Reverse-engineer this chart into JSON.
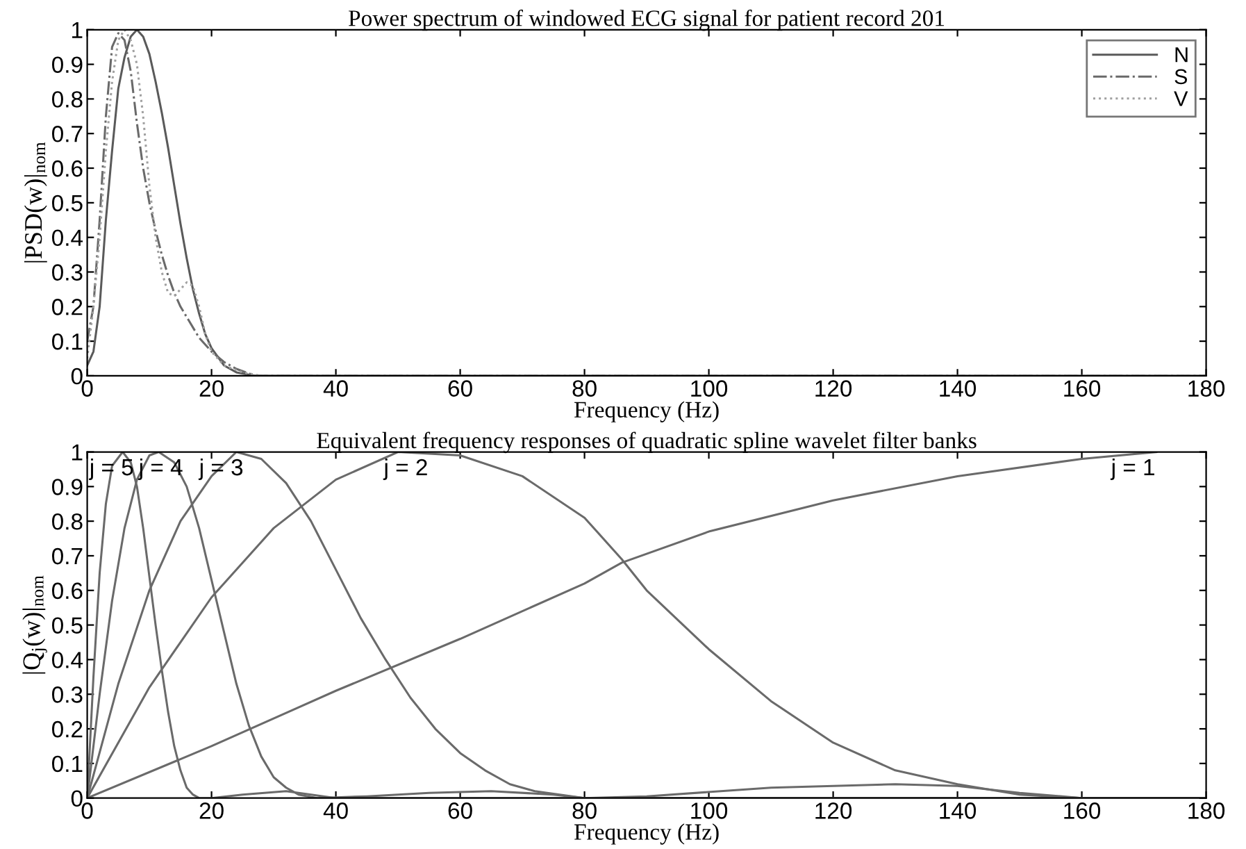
{
  "chart_data": [
    {
      "type": "line",
      "title": "Power spectrum of windowed ECG signal for patient record 201",
      "xlabel": "Frequency (Hz)",
      "ylabel": "|PSD(w)|$_{nom}$",
      "xlim": [
        0,
        180
      ],
      "ylim": [
        0,
        1
      ],
      "xticks": [
        0,
        20,
        40,
        60,
        80,
        100,
        120,
        140,
        160,
        180
      ],
      "yticks": [
        0,
        0.1,
        0.2,
        0.3,
        0.4,
        0.5,
        0.6,
        0.7,
        0.8,
        0.9,
        1
      ],
      "grid": false,
      "legend": "top right",
      "series": [
        {
          "name": "N",
          "color": "#5a5a5a",
          "line_style": "solid",
          "x": [
            0,
            1,
            2,
            3,
            4,
            5,
            6,
            7,
            8,
            9,
            10,
            11,
            12,
            13,
            14,
            15,
            16,
            17,
            18,
            19,
            20,
            22,
            24,
            27,
            180
          ],
          "values": [
            0.03,
            0.07,
            0.2,
            0.45,
            0.65,
            0.83,
            0.92,
            0.98,
            1.0,
            0.98,
            0.93,
            0.85,
            0.76,
            0.66,
            0.55,
            0.44,
            0.34,
            0.25,
            0.18,
            0.12,
            0.08,
            0.03,
            0.01,
            0,
            0
          ]
        },
        {
          "name": "S",
          "color": "#6a6a6a",
          "line_style": "dashdot",
          "x": [
            0,
            1,
            2,
            3,
            4,
            5,
            6,
            7,
            8,
            9,
            10,
            11,
            12,
            13,
            14,
            15,
            16,
            18,
            20,
            22,
            24,
            27,
            180
          ],
          "values": [
            0.1,
            0.2,
            0.45,
            0.75,
            0.95,
            0.99,
            0.97,
            0.88,
            0.73,
            0.6,
            0.5,
            0.42,
            0.35,
            0.29,
            0.24,
            0.2,
            0.17,
            0.11,
            0.07,
            0.04,
            0.02,
            0,
            0
          ]
        },
        {
          "name": "V",
          "color": "#a0a0a0",
          "line_style": "dotted",
          "x": [
            0,
            1,
            2,
            3,
            4,
            5,
            6,
            7,
            8,
            9,
            10,
            11,
            12,
            13,
            14,
            15,
            16,
            17,
            18,
            19,
            20,
            22,
            25,
            28,
            180
          ],
          "values": [
            0.05,
            0.2,
            0.4,
            0.65,
            0.85,
            0.97,
            1.0,
            0.97,
            0.9,
            0.75,
            0.55,
            0.4,
            0.3,
            0.24,
            0.23,
            0.25,
            0.27,
            0.26,
            0.2,
            0.12,
            0.07,
            0.03,
            0.01,
            0,
            0
          ]
        }
      ]
    },
    {
      "type": "line",
      "title": "Equivalent frequency responses of quadratic spline wavelet filter banks",
      "xlabel": "Frequency (Hz)",
      "ylabel": "|Q$_{j}$(w)|$_{nom}$",
      "xlim": [
        0,
        180
      ],
      "ylim": [
        0,
        1
      ],
      "xticks": [
        0,
        20,
        40,
        60,
        80,
        100,
        120,
        140,
        160,
        180
      ],
      "yticks": [
        0,
        0.1,
        0.2,
        0.3,
        0.4,
        0.5,
        0.6,
        0.7,
        0.8,
        0.9,
        1
      ],
      "grid": false,
      "annotations": [
        "j = 5",
        "j = 4",
        "j = 3",
        "j = 2",
        "j = 1"
      ],
      "series": [
        {
          "color": "#6a6a6a",
          "line_style": "solid",
          "x": [
            0,
            1,
            2,
            3,
            4,
            5.7,
            7,
            8,
            9,
            10,
            11,
            12,
            13,
            14,
            15,
            16,
            17,
            18,
            20,
            25,
            32,
            38,
            40,
            180
          ],
          "values": [
            0,
            0.35,
            0.65,
            0.85,
            0.96,
            1,
            0.97,
            0.9,
            0.78,
            0.64,
            0.5,
            0.37,
            0.25,
            0.15,
            0.08,
            0.03,
            0.01,
            0,
            0,
            0.01,
            0.02,
            0.005,
            0,
            0
          ]
        },
        {
          "color": "#6a6a6a",
          "line_style": "solid",
          "x": [
            0,
            2,
            4,
            6,
            8,
            10,
            11.5,
            14,
            16,
            18,
            20,
            22,
            24,
            26,
            28,
            30,
            32,
            34,
            37,
            45,
            55,
            65,
            75,
            80,
            180
          ],
          "values": [
            0,
            0.3,
            0.57,
            0.78,
            0.92,
            0.99,
            1,
            0.97,
            0.9,
            0.78,
            0.63,
            0.48,
            0.33,
            0.21,
            0.12,
            0.06,
            0.03,
            0.01,
            0,
            0.005,
            0.015,
            0.02,
            0.01,
            0,
            0
          ]
        },
        {
          "color": "#6a6a6a",
          "line_style": "solid",
          "x": [
            0,
            5,
            10,
            15,
            20,
            24,
            28,
            32,
            36,
            40,
            44,
            48,
            52,
            56,
            60,
            64,
            68,
            72,
            76,
            80,
            90,
            110,
            130,
            140,
            150,
            160,
            180
          ],
          "values": [
            0,
            0.33,
            0.6,
            0.8,
            0.93,
            1,
            0.98,
            0.91,
            0.8,
            0.66,
            0.52,
            0.4,
            0.29,
            0.2,
            0.13,
            0.08,
            0.04,
            0.02,
            0.01,
            0,
            0.005,
            0.03,
            0.04,
            0.035,
            0.015,
            0,
            0
          ]
        },
        {
          "color": "#6a6a6a",
          "line_style": "solid",
          "x": [
            0,
            10,
            20,
            30,
            40,
            50,
            60,
            70,
            80,
            86,
            90,
            100,
            110,
            120,
            130,
            140,
            150,
            160,
            180
          ],
          "values": [
            0,
            0.32,
            0.58,
            0.78,
            0.92,
            1,
            0.99,
            0.93,
            0.81,
            0.69,
            0.6,
            0.43,
            0.28,
            0.16,
            0.08,
            0.04,
            0.01,
            0,
            0
          ]
        },
        {
          "color": "#6a6a6a",
          "line_style": "solid",
          "x": [
            0,
            20,
            40,
            60,
            80,
            86,
            100,
            120,
            140,
            160,
            172
          ],
          "values": [
            0,
            0.15,
            0.31,
            0.46,
            0.62,
            0.68,
            0.77,
            0.86,
            0.93,
            0.98,
            1.0
          ]
        }
      ]
    }
  ]
}
